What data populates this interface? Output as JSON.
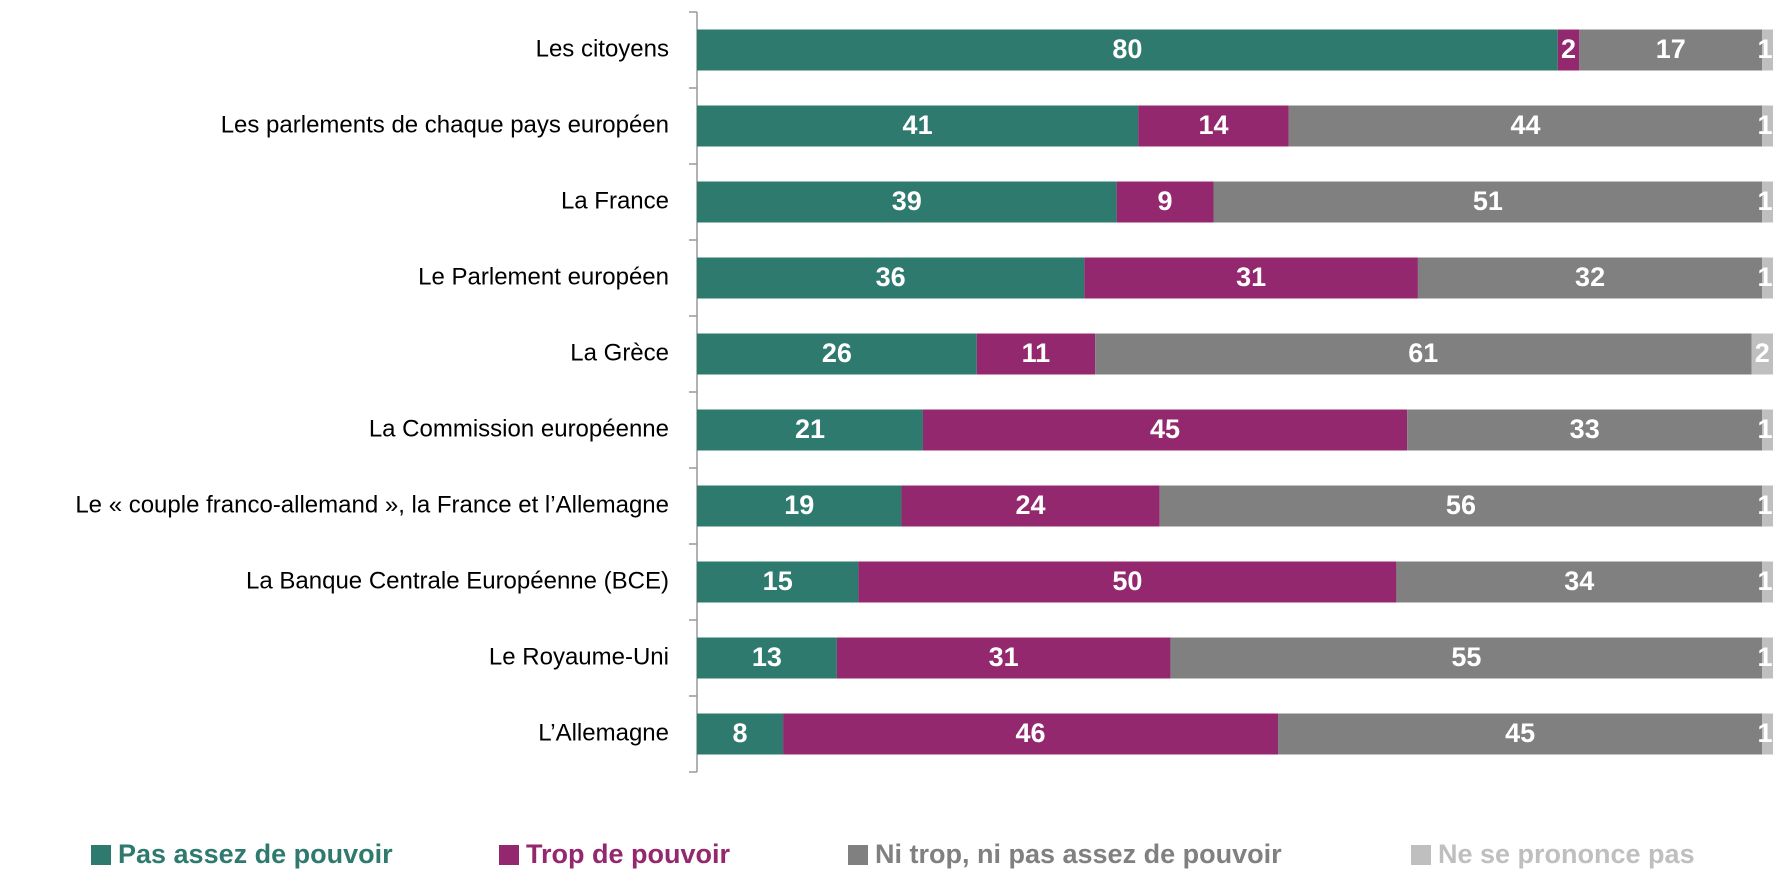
{
  "chart_data": {
    "type": "stacked-barh",
    "categories": [
      "Les citoyens",
      "Les parlements de chaque pays européen",
      "La France",
      "Le Parlement européen",
      "La Grèce",
      "La Commission européenne",
      "Le « couple franco-allemand », la France et l’Allemagne",
      "La Banque Centrale Européenne (BCE)",
      "Le Royaume-Uni",
      "L’Allemagne"
    ],
    "xlim": [
      0,
      100
    ],
    "series": [
      {
        "name": "Pas assez de pouvoir",
        "color": "#2e7a6e",
        "values": [
          80,
          41,
          39,
          36,
          26,
          21,
          19,
          15,
          13,
          8
        ]
      },
      {
        "name": "Trop de pouvoir",
        "color": "#93286e",
        "values": [
          2,
          14,
          9,
          31,
          11,
          45,
          24,
          50,
          31,
          46
        ]
      },
      {
        "name": "Ni trop, ni pas assez de pouvoir",
        "color": "#808080",
        "values": [
          17,
          44,
          51,
          32,
          61,
          33,
          56,
          34,
          55,
          45
        ]
      },
      {
        "name": "Ne se prononce pas",
        "color": "#bfbfbf",
        "values": [
          1,
          1,
          1,
          1,
          2,
          1,
          1,
          1,
          1,
          1
        ]
      }
    ]
  }
}
